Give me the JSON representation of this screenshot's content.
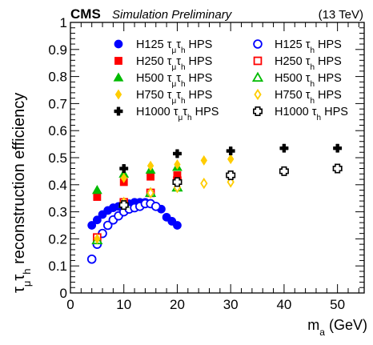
{
  "chart_data": {
    "type": "scatter",
    "header": {
      "experiment": "CMS",
      "subtitle": "Simulation Preliminary",
      "energy": "(13 TeV)"
    },
    "xlabel": {
      "main": "m",
      "sub": "a",
      "unit": " (GeV)"
    },
    "ylabel": {
      "main": "τ",
      "sub1": "μ",
      "mid": "τ",
      "sub2": "h",
      "rest": " reconstruction efficiency"
    },
    "xlim": [
      0,
      55
    ],
    "ylim": [
      0,
      1
    ],
    "xticks": [
      0,
      10,
      20,
      30,
      40,
      50
    ],
    "yticks": [
      0,
      0.1,
      0.2,
      0.3,
      0.4,
      0.5,
      0.6,
      0.7,
      0.8,
      0.9,
      1
    ],
    "legend_placement": "top",
    "series": [
      {
        "name": {
          "mass": "H125",
          "tau": "τ",
          "sub": "μ",
          "tau2": "τ",
          "sub2": "h",
          "method": " HPS"
        },
        "marker": "circle",
        "filled": true,
        "color": "#0000ff",
        "x": [
          4,
          5,
          6,
          7,
          8,
          9,
          10,
          11,
          12,
          13,
          14,
          15,
          16,
          17,
          18,
          19,
          20
        ],
        "y": [
          0.25,
          0.27,
          0.29,
          0.305,
          0.315,
          0.32,
          0.325,
          0.33,
          0.335,
          0.335,
          0.335,
          0.33,
          0.32,
          0.31,
          0.28,
          0.265,
          0.25
        ]
      },
      {
        "name": {
          "mass": "H125",
          "tau": "τ",
          "sub": "h",
          "method": " HPS"
        },
        "marker": "circle",
        "filled": false,
        "color": "#0000ff",
        "x": [
          4,
          5,
          6,
          7,
          8,
          9,
          10,
          11,
          12,
          13,
          14,
          15,
          16
        ],
        "y": [
          0.125,
          0.18,
          0.22,
          0.25,
          0.27,
          0.285,
          0.3,
          0.31,
          0.315,
          0.32,
          0.33,
          0.33,
          0.32
        ]
      },
      {
        "name": {
          "mass": "H250",
          "tau": "τ",
          "sub": "μ",
          "tau2": "τ",
          "sub2": "h",
          "method": " HPS"
        },
        "marker": "square",
        "filled": true,
        "color": "#ff0000",
        "x": [
          5,
          10,
          15,
          20
        ],
        "y": [
          0.355,
          0.41,
          0.43,
          0.435
        ]
      },
      {
        "name": {
          "mass": "H250",
          "tau": "τ",
          "sub": "h",
          "method": " HPS"
        },
        "marker": "square",
        "filled": false,
        "color": "#ff0000",
        "x": [
          5,
          10,
          15,
          20
        ],
        "y": [
          0.205,
          0.335,
          0.37,
          0.415
        ]
      },
      {
        "name": {
          "mass": "H500",
          "tau": "τ",
          "sub": "μ",
          "tau2": "τ",
          "sub2": "h",
          "method": " HPS"
        },
        "marker": "triangle",
        "filled": true,
        "color": "#00bb00",
        "x": [
          5,
          10,
          15,
          20
        ],
        "y": [
          0.38,
          0.44,
          0.455,
          0.465
        ]
      },
      {
        "name": {
          "mass": "H500",
          "tau": "τ",
          "sub": "h",
          "method": " HPS"
        },
        "marker": "triangle",
        "filled": false,
        "color": "#00bb00",
        "x": [
          5,
          10,
          15,
          20
        ],
        "y": [
          0.195,
          0.33,
          0.37,
          0.39
        ]
      },
      {
        "name": {
          "mass": "H750",
          "tau": "τ",
          "sub": "μ",
          "tau2": "τ",
          "sub2": "h",
          "method": " HPS"
        },
        "marker": "diamond",
        "filled": true,
        "color": "#ffcc00",
        "x": [
          5,
          10,
          15,
          20,
          25,
          30
        ],
        "y": [
          0.2,
          0.425,
          0.47,
          0.475,
          0.49,
          0.495
        ]
      },
      {
        "name": {
          "mass": "H750",
          "tau": "τ",
          "sub": "h",
          "method": " HPS"
        },
        "marker": "diamond",
        "filled": false,
        "color": "#ffcc00",
        "x": [
          10,
          15,
          20,
          25,
          30
        ],
        "y": [
          0.335,
          0.37,
          0.39,
          0.405,
          0.41
        ]
      },
      {
        "name": {
          "mass": "H1000",
          "tau": "τ",
          "sub": "μ",
          "tau2": "τ",
          "sub2": "h",
          "method": " HPS"
        },
        "marker": "cross",
        "filled": true,
        "color": "#000000",
        "x": [
          10,
          20,
          30,
          40,
          50
        ],
        "y": [
          0.46,
          0.515,
          0.525,
          0.535,
          0.535
        ]
      },
      {
        "name": {
          "mass": "H1000",
          "tau": "τ",
          "sub": "h",
          "method": " HPS"
        },
        "marker": "cross",
        "filled": false,
        "color": "#000000",
        "x": [
          10,
          20,
          30,
          40,
          50
        ],
        "y": [
          0.325,
          0.41,
          0.435,
          0.45,
          0.46
        ]
      }
    ]
  }
}
